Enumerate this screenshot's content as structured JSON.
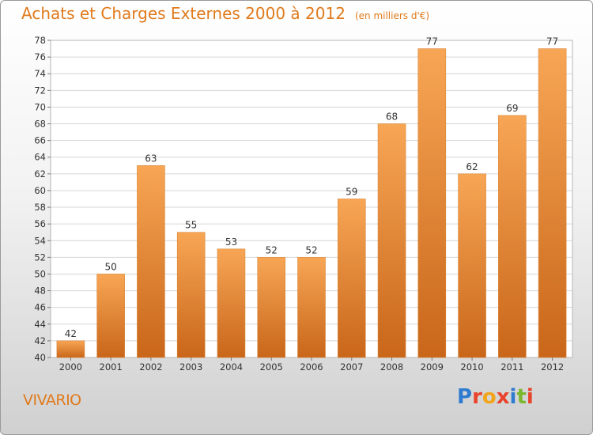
{
  "chart_data": {
    "type": "bar",
    "title": "Achats et Charges Externes 2000 à 2012",
    "subtitle": "(en milliers d'€)",
    "categories": [
      "2000",
      "2001",
      "2002",
      "2003",
      "2004",
      "2005",
      "2006",
      "2007",
      "2008",
      "2009",
      "2010",
      "2011",
      "2012"
    ],
    "values": [
      42,
      50,
      63,
      55,
      53,
      52,
      52,
      59,
      68,
      77,
      62,
      69,
      77
    ],
    "ylim": [
      40,
      78
    ],
    "yticks": [
      40,
      42,
      44,
      46,
      48,
      50,
      52,
      54,
      56,
      58,
      60,
      62,
      64,
      66,
      68,
      70,
      72,
      74,
      76,
      78
    ],
    "xlabel": "",
    "ylabel": "",
    "grid": true,
    "legend": "none",
    "bar_color": "#f0963c",
    "bar_color_dark": "#c9661a"
  },
  "footer": {
    "commune": "VIVARIO",
    "brand": "Proxiti"
  },
  "colors": {
    "title": "#e07a1c",
    "brand_letters": [
      "#2f7bd0",
      "#e8432b",
      "#f2a51a",
      "#e8432b",
      "#2f7bd0",
      "#7cb82f",
      "#e8432b"
    ]
  }
}
